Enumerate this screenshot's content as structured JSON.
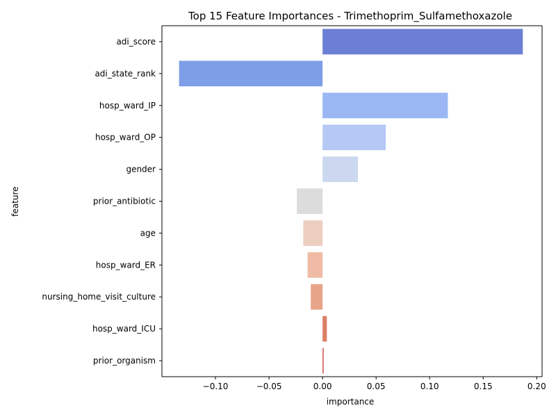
{
  "chart_data": {
    "type": "bar",
    "orientation": "horizontal",
    "title": "Top 15 Feature Importances - Trimethoprim_Sulfamethoxazole",
    "xlabel": "importance",
    "ylabel": "feature",
    "xlim": [
      -0.15,
      0.205
    ],
    "x_ticks": [
      "−0.10",
      "−0.05",
      "0.00",
      "0.05",
      "0.10",
      "0.15",
      "0.20"
    ],
    "x_tick_values": [
      -0.1,
      -0.05,
      0.0,
      0.05,
      0.1,
      0.15,
      0.2
    ],
    "grid": false,
    "categories": [
      "adi_score",
      "adi_state_rank",
      "hosp_ward_IP",
      "hosp_ward_OP",
      "gender",
      "prior_antibiotic",
      "age",
      "hosp_ward_ER",
      "nursing_home_visit_culture",
      "hosp_ward_ICU",
      "prior_organism"
    ],
    "values": [
      0.187,
      -0.134,
      0.117,
      0.059,
      0.033,
      -0.024,
      -0.018,
      -0.014,
      -0.011,
      0.004,
      0.001
    ],
    "colors": [
      "#6b80d4",
      "#7f9ee8",
      "#9bb7f4",
      "#b5c9f4",
      "#cbd8ef",
      "#dcdcdc",
      "#eccec1",
      "#efbba4",
      "#e8a489",
      "#dc7f65",
      "#c9534f"
    ]
  }
}
